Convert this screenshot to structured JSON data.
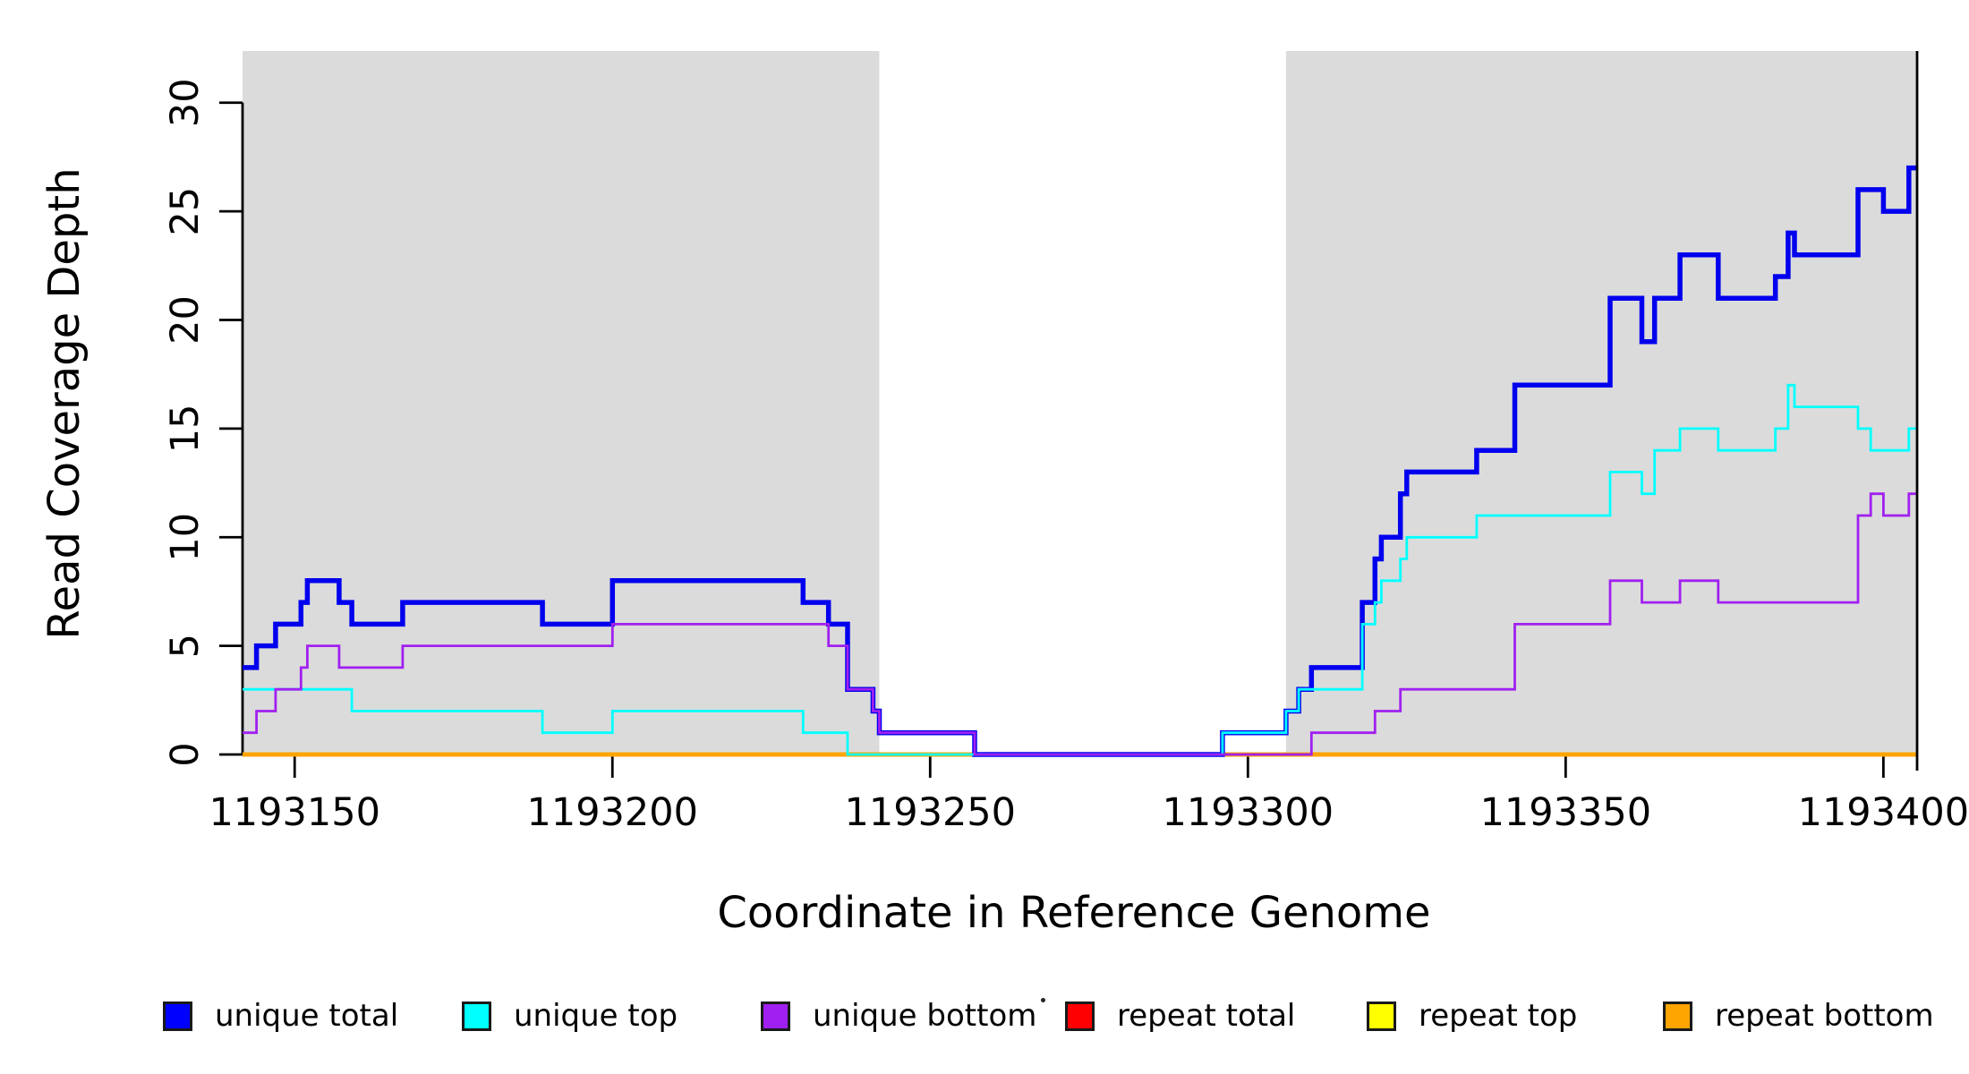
{
  "chart_data": {
    "type": "line",
    "subtype": "step-coverage-plot",
    "title": "",
    "xlabel": "Coordinate in Reference Genome",
    "ylabel": "Read Coverage Depth",
    "xlim": [
      1193141.8,
      1193405.3
    ],
    "ylim": [
      0,
      32.38
    ],
    "grid": false,
    "x_tick_values": [
      1193150,
      1193200,
      1193250,
      1193300,
      1193350,
      1193400
    ],
    "x_tick_labels": [
      "1193150",
      "1193200",
      "1193250",
      "1193300",
      "1193350",
      "1193400"
    ],
    "y_tick_values": [
      0,
      5,
      10,
      15,
      20,
      25,
      30
    ],
    "y_tick_labels": [
      "0",
      "5",
      "10",
      "15",
      "20",
      "25",
      "30"
    ],
    "shaded_regions": [
      {
        "x0": 1193141.8,
        "x1": 1193242,
        "color": "#DBDBDB"
      },
      {
        "x0": 1193306,
        "x1": 1193405.3,
        "color": "#DBDBDB"
      }
    ],
    "draw_order": [
      "repeat total",
      "repeat top",
      "repeat bottom",
      "unique total",
      "unique top",
      "unique bottom"
    ],
    "series": [
      {
        "name": "unique total",
        "color": "#0000EE",
        "line_width": 5.5,
        "points": [
          [
            1193141.8,
            4
          ],
          [
            1193144,
            5
          ],
          [
            1193147,
            6
          ],
          [
            1193151,
            7
          ],
          [
            1193152,
            8
          ],
          [
            1193157,
            7
          ],
          [
            1193159,
            6
          ],
          [
            1193167,
            7
          ],
          [
            1193189,
            6
          ],
          [
            1193200,
            8
          ],
          [
            1193230,
            7
          ],
          [
            1193234,
            6
          ],
          [
            1193237,
            3
          ],
          [
            1193241,
            2
          ],
          [
            1193242,
            1
          ],
          [
            1193257,
            0
          ],
          [
            1193296,
            1
          ],
          [
            1193306,
            2
          ],
          [
            1193308,
            3
          ],
          [
            1193310,
            4
          ],
          [
            1193318,
            7
          ],
          [
            1193320,
            9
          ],
          [
            1193321,
            10
          ],
          [
            1193324,
            12
          ],
          [
            1193325,
            13
          ],
          [
            1193336,
            14
          ],
          [
            1193342,
            17
          ],
          [
            1193357,
            21
          ],
          [
            1193362,
            19
          ],
          [
            1193364,
            21
          ],
          [
            1193368,
            23
          ],
          [
            1193374,
            21
          ],
          [
            1193383,
            22
          ],
          [
            1193385,
            24
          ],
          [
            1193386,
            23
          ],
          [
            1193396,
            26
          ],
          [
            1193400,
            25
          ],
          [
            1193404,
            27
          ]
        ]
      },
      {
        "name": "unique top",
        "color": "#00FFFF",
        "line_width": 2.8,
        "points": [
          [
            1193141.8,
            3
          ],
          [
            1193159,
            2
          ],
          [
            1193189,
            1
          ],
          [
            1193200,
            2
          ],
          [
            1193230,
            1
          ],
          [
            1193237,
            0
          ],
          [
            1193296,
            1
          ],
          [
            1193306,
            2
          ],
          [
            1193308,
            3
          ],
          [
            1193318,
            6
          ],
          [
            1193320,
            7
          ],
          [
            1193321,
            8
          ],
          [
            1193324,
            9
          ],
          [
            1193325,
            10
          ],
          [
            1193336,
            11
          ],
          [
            1193357,
            13
          ],
          [
            1193362,
            12
          ],
          [
            1193364,
            14
          ],
          [
            1193368,
            15
          ],
          [
            1193374,
            14
          ],
          [
            1193383,
            15
          ],
          [
            1193385,
            17
          ],
          [
            1193386,
            16
          ],
          [
            1193396,
            15
          ],
          [
            1193398,
            14
          ],
          [
            1193404,
            15
          ]
        ]
      },
      {
        "name": "unique bottom",
        "color": "#A020F0",
        "line_width": 2.8,
        "points": [
          [
            1193141.8,
            1
          ],
          [
            1193144,
            2
          ],
          [
            1193147,
            3
          ],
          [
            1193151,
            4
          ],
          [
            1193152,
            5
          ],
          [
            1193157,
            4
          ],
          [
            1193167,
            5
          ],
          [
            1193200,
            6
          ],
          [
            1193234,
            5
          ],
          [
            1193237,
            3
          ],
          [
            1193241,
            2
          ],
          [
            1193242,
            1
          ],
          [
            1193257,
            0
          ],
          [
            1193310,
            1
          ],
          [
            1193320,
            2
          ],
          [
            1193324,
            3
          ],
          [
            1193342,
            6
          ],
          [
            1193357,
            8
          ],
          [
            1193362,
            7
          ],
          [
            1193368,
            8
          ],
          [
            1193374,
            7
          ],
          [
            1193396,
            11
          ],
          [
            1193398,
            12
          ],
          [
            1193400,
            11
          ],
          [
            1193404,
            12
          ]
        ]
      },
      {
        "name": "repeat total",
        "color": "#FF0000",
        "line_width": 4,
        "points": [
          [
            1193141.8,
            0
          ]
        ]
      },
      {
        "name": "repeat top",
        "color": "#FFFF00",
        "line_width": 4,
        "points": [
          [
            1193141.8,
            0
          ]
        ]
      },
      {
        "name": "repeat bottom",
        "color": "#FFA500",
        "line_width": 5,
        "points": [
          [
            1193141.8,
            0
          ]
        ]
      }
    ],
    "legend": {
      "position": "bottom",
      "entries": [
        {
          "label": "unique total",
          "color": "#0000FF"
        },
        {
          "label": "unique top",
          "color": "#00FFFF"
        },
        {
          "label": "unique bottom",
          "color": "#A020F0"
        },
        {
          "label": "repeat total",
          "color": "#FF0000"
        },
        {
          "label": "repeat top",
          "color": "#FFFF00"
        },
        {
          "label": "repeat bottom",
          "color": "#FFA500"
        }
      ],
      "stray_dot_present": true
    }
  }
}
